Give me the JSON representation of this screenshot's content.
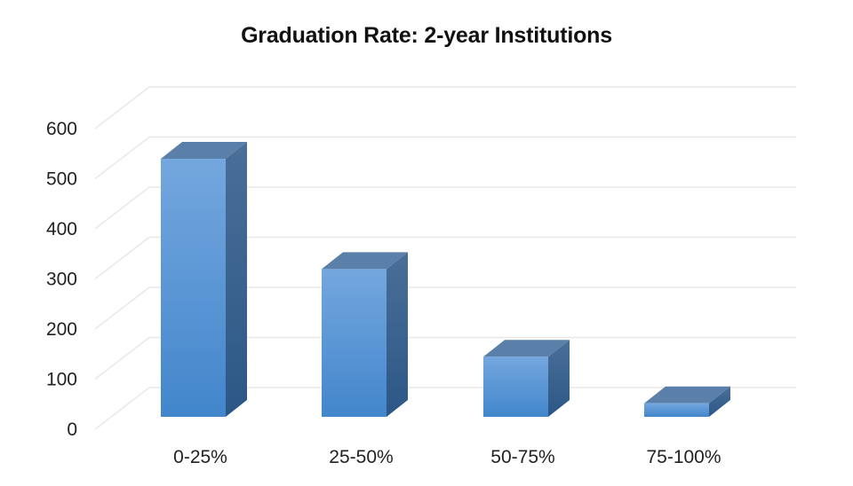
{
  "chart_data": {
    "type": "bar",
    "style": "3d-column",
    "title": "Graduation Rate: 2-year Institutions",
    "xlabel": "",
    "ylabel": "",
    "categories": [
      "0-25%",
      "25-50%",
      "50-75%",
      "75-100%"
    ],
    "values": [
      515,
      295,
      120,
      27
    ],
    "ylim": [
      0,
      600
    ],
    "yticks": [
      0,
      100,
      200,
      300,
      400,
      500,
      600
    ],
    "grid": true,
    "legend": null,
    "colors": {
      "front_top": "#74a7de",
      "front_bottom": "#4286cb",
      "top_face": "#5a80aa",
      "side_top": "#4a6f98",
      "side_bottom": "#2c5786",
      "grid": "#e8e8e8"
    }
  }
}
